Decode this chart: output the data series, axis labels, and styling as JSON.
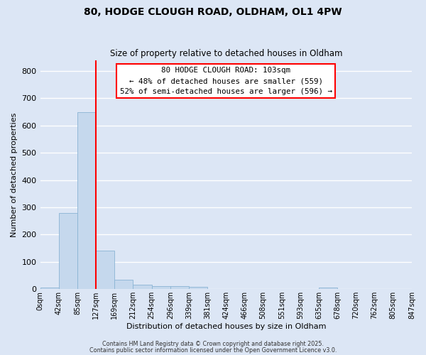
{
  "title_line1": "80, HODGE CLOUGH ROAD, OLDHAM, OL1 4PW",
  "title_line2": "Size of property relative to detached houses in Oldham",
  "xlabel": "Distribution of detached houses by size in Oldham",
  "ylabel": "Number of detached properties",
  "bar_color": "#c5d8ed",
  "bar_edge_color": "#8ab4d4",
  "fig_background": "#dce6f5",
  "axes_background": "#dce6f5",
  "grid_color": "#ffffff",
  "bin_labels": [
    "0sqm",
    "42sqm",
    "85sqm",
    "127sqm",
    "169sqm",
    "212sqm",
    "254sqm",
    "296sqm",
    "339sqm",
    "381sqm",
    "424sqm",
    "466sqm",
    "508sqm",
    "551sqm",
    "593sqm",
    "635sqm",
    "678sqm",
    "720sqm",
    "762sqm",
    "805sqm",
    "847sqm"
  ],
  "bar_values": [
    7,
    278,
    648,
    142,
    35,
    16,
    11,
    11,
    8,
    0,
    0,
    0,
    0,
    0,
    0,
    6,
    0,
    0,
    0,
    0
  ],
  "ylim": [
    0,
    840
  ],
  "yticks": [
    0,
    100,
    200,
    300,
    400,
    500,
    600,
    700,
    800
  ],
  "property_label": "80 HODGE CLOUGH ROAD: 103sqm",
  "annotation_line1": "← 48% of detached houses are smaller (559)",
  "annotation_line2": "52% of semi-detached houses are larger (596) →",
  "red_line_x": 3.0,
  "footer_line1": "Contains HM Land Registry data © Crown copyright and database right 2025.",
  "footer_line2": "Contains public sector information licensed under the Open Government Licence v3.0."
}
